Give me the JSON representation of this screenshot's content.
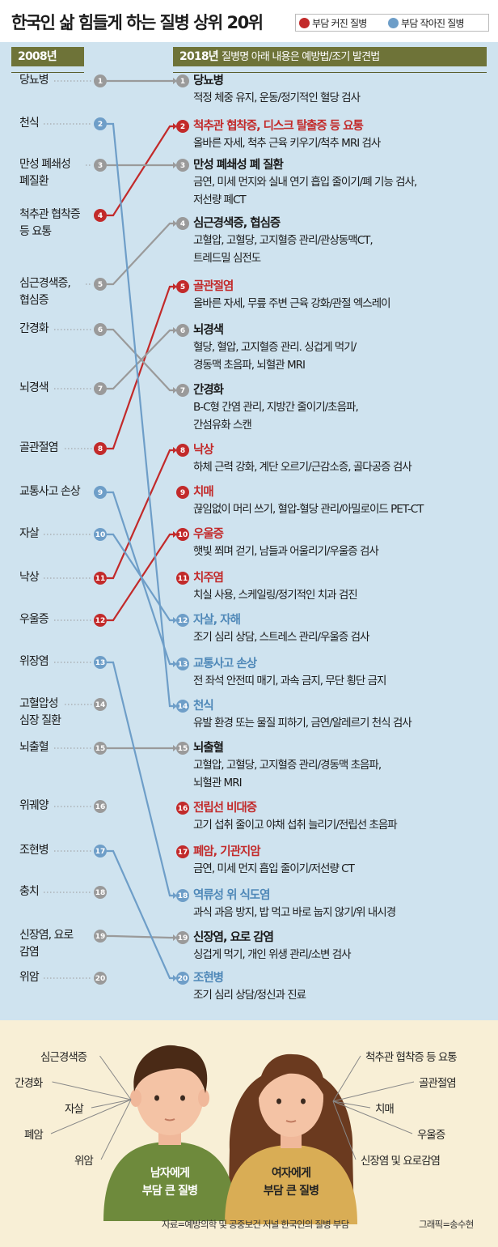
{
  "title": "한국인 삶 힘들게 하는 질병 상위 20위",
  "legend": {
    "up": {
      "label": "부담 커진 질병",
      "color": "#c22a2a"
    },
    "down": {
      "label": "부담 작아진 질병",
      "color": "#6e9ec8"
    },
    "same_color": "#9a9a9a"
  },
  "columns": {
    "left": "2008년",
    "right": "2018년",
    "right_note": "질병명 아래 내용은 예방법/조기 발견법"
  },
  "y2008": [
    {
      "rank": "1",
      "name": "당뇨병"
    },
    {
      "rank": "2",
      "name": "천식"
    },
    {
      "rank": "3",
      "name": "만성 폐쇄성\n폐질환"
    },
    {
      "rank": "4",
      "name": "척추관 협착증\n등 요통"
    },
    {
      "rank": "5",
      "name": "심근경색증,\n협심증"
    },
    {
      "rank": "6",
      "name": "간경화"
    },
    {
      "rank": "7",
      "name": "뇌경색"
    },
    {
      "rank": "8",
      "name": "골관절염"
    },
    {
      "rank": "9",
      "name": "교통사고 손상"
    },
    {
      "rank": "10",
      "name": "자살"
    },
    {
      "rank": "11",
      "name": "낙상"
    },
    {
      "rank": "12",
      "name": "우울증"
    },
    {
      "rank": "13",
      "name": "위장염"
    },
    {
      "rank": "14",
      "name": "고혈압성\n심장 질환"
    },
    {
      "rank": "15",
      "name": "뇌출혈"
    },
    {
      "rank": "16",
      "name": "위궤양"
    },
    {
      "rank": "17",
      "name": "조현병"
    },
    {
      "rank": "18",
      "name": "충치"
    },
    {
      "rank": "19",
      "name": "신장염, 요로\n감염"
    },
    {
      "rank": "20",
      "name": "위암"
    }
  ],
  "y2018": [
    {
      "rank": "1",
      "name": "당뇨병",
      "status": "same",
      "prev": 1,
      "desc": [
        "적정 체중 유지, 운동/정기적인 혈당 검사"
      ]
    },
    {
      "rank": "2",
      "name": "척추관 협착증, 디스크 탈출증 등 요통",
      "status": "up",
      "prev": 4,
      "desc": [
        "올바른 자세, 척추 근육 키우기/척추 MRI 검사"
      ]
    },
    {
      "rank": "3",
      "name": "만성 폐쇄성 폐 질환",
      "status": "same",
      "prev": 3,
      "desc": [
        "금연, 미세 먼지와 실내 연기 흡입 줄이기/폐 기능 검사,",
        "저선량 폐CT"
      ]
    },
    {
      "rank": "4",
      "name": "심근경색증, 협심증",
      "status": "same",
      "prev": 5,
      "desc": [
        "고혈압, 고혈당, 고지혈증 관리/관상동맥CT,",
        "트레드밀 심전도"
      ]
    },
    {
      "rank": "5",
      "name": "골관절염",
      "status": "up",
      "prev": 8,
      "desc": [
        "올바른 자세, 무릎 주변 근육 강화/관절 엑스레이"
      ]
    },
    {
      "rank": "6",
      "name": "뇌경색",
      "status": "same",
      "prev": 7,
      "desc": [
        "혈당, 혈압, 고지혈증 관리. 싱겁게 먹기/",
        "경동맥 초음파, 뇌혈관 MRI"
      ]
    },
    {
      "rank": "7",
      "name": "간경화",
      "status": "same",
      "prev": 6,
      "desc": [
        "B-C형 간염 관리, 지방간 줄이기/초음파,",
        "간섬유화 스캔"
      ]
    },
    {
      "rank": "8",
      "name": "낙상",
      "status": "up",
      "prev": 11,
      "desc": [
        "하체 근력 강화, 계단 오르기/근감소증, 골다공증 검사"
      ]
    },
    {
      "rank": "9",
      "name": "치매",
      "status": "up",
      "prev": null,
      "desc": [
        "끊임없이 머리 쓰기, 혈압-혈당 관리/아밀로이드 PET-CT"
      ]
    },
    {
      "rank": "10",
      "name": "우울증",
      "status": "up",
      "prev": 12,
      "desc": [
        "햇빛 쬐며 걷기, 남들과 어울리기/우울증 검사"
      ]
    },
    {
      "rank": "11",
      "name": "치주염",
      "status": "up",
      "prev": null,
      "desc": [
        "치실 사용, 스케일링/정기적인 치과 검진"
      ]
    },
    {
      "rank": "12",
      "name": "자살, 자해",
      "status": "down",
      "prev": 10,
      "desc": [
        "조기 심리 상담, 스트레스 관리/우울증 검사"
      ]
    },
    {
      "rank": "13",
      "name": "교통사고 손상",
      "status": "down",
      "prev": 9,
      "desc": [
        "전 좌석 안전띠 매기, 과속 금지, 무단 횡단 금지"
      ]
    },
    {
      "rank": "14",
      "name": "천식",
      "status": "down",
      "prev": 2,
      "desc": [
        "유발 환경 또는 물질 피하기, 금연/알레르기 천식 검사"
      ]
    },
    {
      "rank": "15",
      "name": "뇌출혈",
      "status": "same",
      "prev": 15,
      "desc": [
        "고혈압, 고혈당, 고지혈증 관리/경동맥 초음파,",
        "뇌혈관 MRI"
      ]
    },
    {
      "rank": "16",
      "name": "전립선 비대증",
      "status": "up",
      "prev": null,
      "desc": [
        "고기 섭취 줄이고 야채 섭취 늘리기/전립선 초음파"
      ]
    },
    {
      "rank": "17",
      "name": "폐암, 기관지암",
      "status": "up",
      "prev": null,
      "desc": [
        "금연, 미세 먼지 흡입 줄이기/저선량 CT"
      ]
    },
    {
      "rank": "18",
      "name": "역류성 위 식도염",
      "status": "down",
      "prev": 13,
      "desc": [
        "과식 과음 방지, 밥 먹고 바로 눕지 않기/위 내시경"
      ]
    },
    {
      "rank": "19",
      "name": "신장염, 요로 감염",
      "status": "same",
      "prev": 19,
      "desc": [
        "싱겁게 먹기, 개인 위생 관리/소변 검사"
      ]
    },
    {
      "rank": "20",
      "name": "조현병",
      "status": "down",
      "prev": 17,
      "desc": [
        "조기 심리 상담/정신과 진료"
      ]
    }
  ],
  "bottom": {
    "men_items": [
      "심근경색증",
      "간경화",
      "자살",
      "폐암",
      "위암"
    ],
    "men_label": [
      "남자에게",
      "부담 큰 질병"
    ],
    "women_items": [
      "척추관 협착증 등 요통",
      "골관절염",
      "치매",
      "우울증",
      "신장염 및 요로감염"
    ],
    "women_label": [
      "여자에게",
      "부담 큰 질병"
    ],
    "source": "자료=예방의학 및 공중보건 저널 한국인의 질병 부담",
    "credit": "그래픽=송수현"
  }
}
